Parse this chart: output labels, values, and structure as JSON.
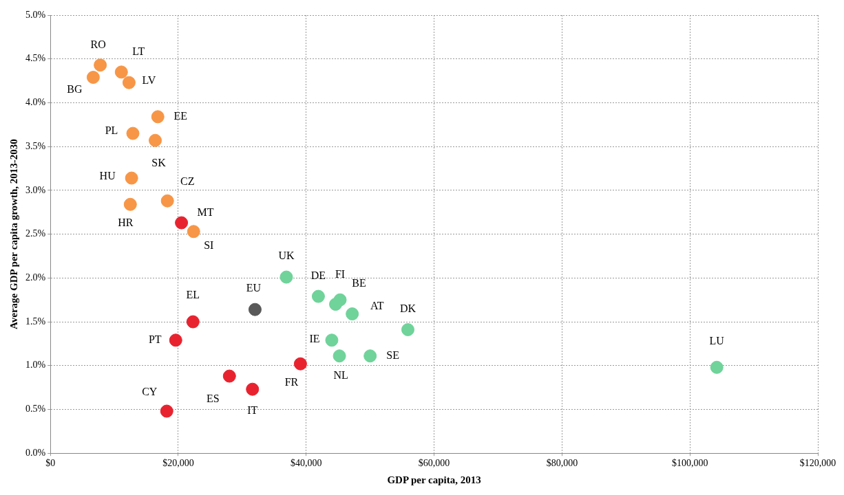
{
  "chart_data": {
    "type": "scatter",
    "xlabel": "GDP per capita, 2013",
    "ylabel": "Average GDP per capita growth, 2013-2030",
    "series": [
      {
        "color": "#f79646",
        "x": [
          7800,
          11100,
          6700,
          12300,
          16800,
          12900,
          16400,
          12700,
          12500,
          18300,
          22400
        ],
        "values": [
          4.43,
          4.35,
          4.29,
          4.23,
          3.84,
          3.65,
          3.57,
          3.14,
          2.84,
          2.88,
          2.53
        ]
      },
      {
        "color": "#e8232f",
        "x": [
          20500,
          22300,
          19600,
          39100,
          28000,
          31600,
          18200
        ],
        "values": [
          2.63,
          1.5,
          1.29,
          1.02,
          0.88,
          0.73,
          0.48
        ]
      },
      {
        "color": "#6fd39a",
        "x": [
          36900,
          41900,
          45300,
          44600,
          47200,
          55900,
          44000,
          45200,
          50000,
          104200
        ],
        "values": [
          2.01,
          1.79,
          1.75,
          1.7,
          1.59,
          1.41,
          1.29,
          1.11,
          1.11,
          0.98
        ]
      },
      {
        "color": "#595959",
        "x": [
          32000
        ],
        "values": [
          1.64
        ]
      }
    ],
    "annotations": [
      {
        "text": "RO",
        "x": 7800,
        "y": 4.43
      },
      {
        "text": "LT",
        "x": 11100,
        "y": 4.35
      },
      {
        "text": "BG",
        "x": 6700,
        "y": 4.29
      },
      {
        "text": "LV",
        "x": 12300,
        "y": 4.23
      },
      {
        "text": "EE",
        "x": 16800,
        "y": 3.84
      },
      {
        "text": "PL",
        "x": 12900,
        "y": 3.65
      },
      {
        "text": "SK",
        "x": 16400,
        "y": 3.57
      },
      {
        "text": "HU",
        "x": 12700,
        "y": 3.14
      },
      {
        "text": "HR",
        "x": 12500,
        "y": 2.84
      },
      {
        "text": "CZ",
        "x": 18300,
        "y": 2.88
      },
      {
        "text": "SI",
        "x": 22400,
        "y": 2.53
      },
      {
        "text": "MT",
        "x": 20500,
        "y": 2.63
      },
      {
        "text": "EL",
        "x": 22300,
        "y": 1.5
      },
      {
        "text": "PT",
        "x": 19600,
        "y": 1.29
      },
      {
        "text": "FR",
        "x": 39100,
        "y": 1.02
      },
      {
        "text": "ES",
        "x": 28000,
        "y": 0.88
      },
      {
        "text": "IT",
        "x": 31600,
        "y": 0.73
      },
      {
        "text": "CY",
        "x": 18200,
        "y": 0.48
      },
      {
        "text": "UK",
        "x": 36900,
        "y": 2.01
      },
      {
        "text": "DE",
        "x": 41900,
        "y": 1.79
      },
      {
        "text": "FI",
        "x": 45300,
        "y": 1.75
      },
      {
        "text": "BE",
        "x": 44600,
        "y": 1.7
      },
      {
        "text": "AT",
        "x": 47200,
        "y": 1.59
      },
      {
        "text": "DK",
        "x": 55900,
        "y": 1.41
      },
      {
        "text": "IE",
        "x": 44000,
        "y": 1.29
      },
      {
        "text": "NL",
        "x": 45200,
        "y": 1.11
      },
      {
        "text": "SE",
        "x": 50000,
        "y": 1.11
      },
      {
        "text": "LU",
        "x": 104200,
        "y": 0.98
      },
      {
        "text": "EU",
        "x": 32000,
        "y": 1.64
      }
    ],
    "xlim": [
      0,
      120000
    ],
    "ylim": [
      0,
      5
    ],
    "xticks": [
      {
        "value": 0,
        "label": "$0"
      },
      {
        "value": 20000,
        "label": "$20,000"
      },
      {
        "value": 40000,
        "label": "$40,000"
      },
      {
        "value": 60000,
        "label": "$60,000"
      },
      {
        "value": 80000,
        "label": "$80,000"
      },
      {
        "value": 100000,
        "label": "$100,000"
      },
      {
        "value": 120000,
        "label": "$120,000"
      }
    ],
    "yticks": [
      {
        "value": 0,
        "label": "0.0%"
      },
      {
        "value": 0.5,
        "label": "0.5%"
      },
      {
        "value": 1,
        "label": "1.0%"
      },
      {
        "value": 1.5,
        "label": "1.5%"
      },
      {
        "value": 2,
        "label": "2.0%"
      },
      {
        "value": 2.5,
        "label": "2.5%"
      },
      {
        "value": 3,
        "label": "3.0%"
      },
      {
        "value": 3.5,
        "label": "3.5%"
      },
      {
        "value": 4,
        "label": "4.0%"
      },
      {
        "value": 4.5,
        "label": "4.5%"
      },
      {
        "value": 5,
        "label": "5.0%"
      }
    ],
    "grid": true,
    "legend": false,
    "marker": "circle"
  }
}
